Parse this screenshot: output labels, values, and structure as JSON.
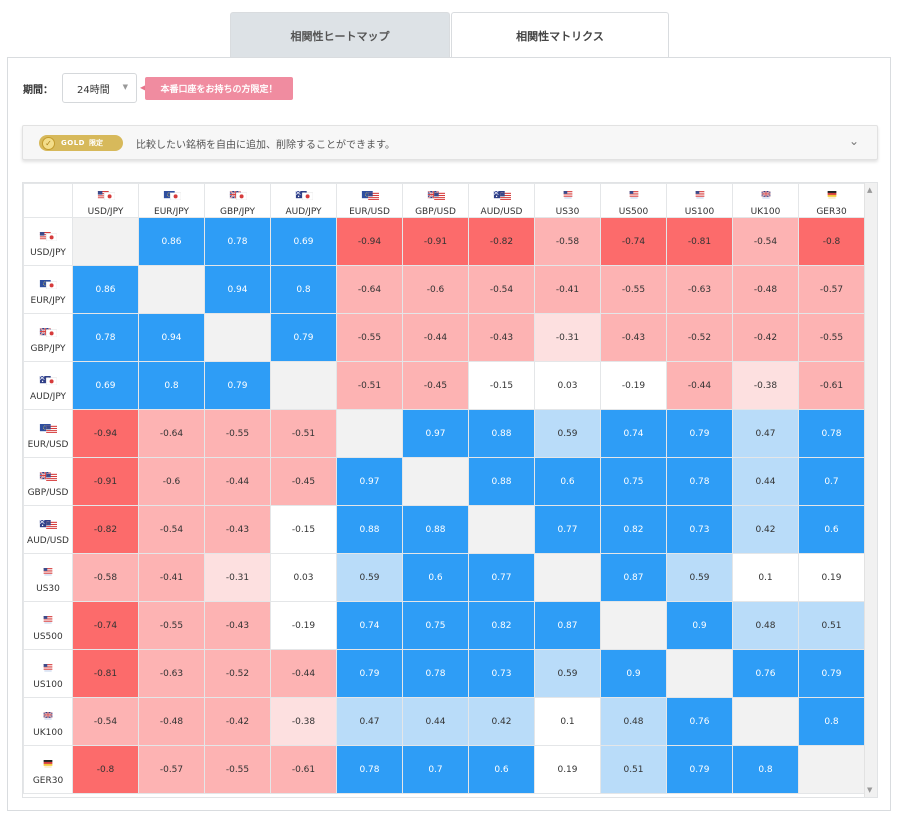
{
  "tabs": [
    {
      "label": "相関性ヒートマップ",
      "active": false
    },
    {
      "label": "相関性マトリクス",
      "active": true
    }
  ],
  "period": {
    "label": "期間：",
    "value": "24時間"
  },
  "promo": {
    "label": "本番口座をお持ちの方限定！"
  },
  "gold": {
    "badge": "GOLD",
    "limit": "限定",
    "description": "比較したい銘柄を自由に追加、削除することができます。"
  },
  "colors": {
    "strong_pos": "#2e9df6",
    "weak_pos": "#b9dcf9",
    "strong_neg": "#fc6b6b",
    "mid_neg": "#fdb3b3",
    "weak_neg": "#fde0e0",
    "neutral": "#ffffff",
    "diagonal": "#f2f2f2"
  },
  "matrix": {
    "symbols": [
      "USD/JPY",
      "EUR/JPY",
      "GBP/JPY",
      "AUD/JPY",
      "EUR/USD",
      "GBP/USD",
      "AUD/USD",
      "US30",
      "US500",
      "US100",
      "UK100",
      "GER30"
    ],
    "flags": [
      "us-jp",
      "eu-jp",
      "gb-jp",
      "au-jp",
      "eu-us",
      "gb-us",
      "au-us",
      "us",
      "us",
      "us",
      "gb",
      "de"
    ],
    "values": [
      [
        "",
        "0.86",
        "0.78",
        "0.69",
        "-0.94",
        "-0.91",
        "-0.82",
        "-0.58",
        "-0.74",
        "-0.81",
        "-0.54",
        "-0.8"
      ],
      [
        "0.86",
        "",
        "0.94",
        "0.8",
        "-0.64",
        "-0.6",
        "-0.54",
        "-0.41",
        "-0.55",
        "-0.63",
        "-0.48",
        "-0.57"
      ],
      [
        "0.78",
        "0.94",
        "",
        "0.79",
        "-0.55",
        "-0.44",
        "-0.43",
        "-0.31",
        "-0.43",
        "-0.52",
        "-0.42",
        "-0.55"
      ],
      [
        "0.69",
        "0.8",
        "0.79",
        "",
        "-0.51",
        "-0.45",
        "-0.15",
        "0.03",
        "-0.19",
        "-0.44",
        "-0.38",
        "-0.61"
      ],
      [
        "-0.94",
        "-0.64",
        "-0.55",
        "-0.51",
        "",
        "0.97",
        "0.88",
        "0.59",
        "0.74",
        "0.79",
        "0.47",
        "0.78"
      ],
      [
        "-0.91",
        "-0.6",
        "-0.44",
        "-0.45",
        "0.97",
        "",
        "0.88",
        "0.6",
        "0.75",
        "0.78",
        "0.44",
        "0.7"
      ],
      [
        "-0.82",
        "-0.54",
        "-0.43",
        "-0.15",
        "0.88",
        "0.88",
        "",
        "0.77",
        "0.82",
        "0.73",
        "0.42",
        "0.6"
      ],
      [
        "-0.58",
        "-0.41",
        "-0.31",
        "0.03",
        "0.59",
        "0.6",
        "0.77",
        "",
        "0.87",
        "0.59",
        "0.1",
        "0.19"
      ],
      [
        "-0.74",
        "-0.55",
        "-0.43",
        "-0.19",
        "0.74",
        "0.75",
        "0.82",
        "0.87",
        "",
        "0.9",
        "0.48",
        "0.51"
      ],
      [
        "-0.81",
        "-0.63",
        "-0.52",
        "-0.44",
        "0.79",
        "0.78",
        "0.73",
        "0.59",
        "0.9",
        "",
        "0.76",
        "0.79"
      ],
      [
        "-0.54",
        "-0.48",
        "-0.42",
        "-0.38",
        "0.47",
        "0.44",
        "0.42",
        "0.1",
        "0.48",
        "0.76",
        "",
        "0.8"
      ],
      [
        "-0.8",
        "-0.57",
        "-0.55",
        "-0.61",
        "0.78",
        "0.7",
        "0.6",
        "0.19",
        "0.51",
        "0.79",
        "0.8",
        ""
      ]
    ]
  }
}
